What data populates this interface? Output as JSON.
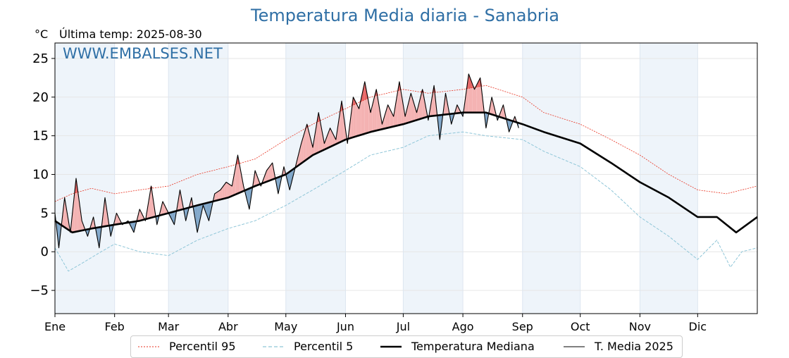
{
  "title": "Temperatura Media diaria - Sanabria",
  "unit": "°C",
  "last_temp_text": "Última temp: 2025-08-30",
  "watermark": "WWW.EMBALSES.NET",
  "colors": {
    "title": "#2f6fa5",
    "p95": "#e8311f",
    "p5": "#8fc6d8",
    "median": "#000000",
    "current": "#000000",
    "above_fill": "#f4b2b2",
    "above_extreme_fill": "#e86565",
    "below_fill": "#7fa6c9",
    "month_band": "#eef4fa"
  },
  "legend": [
    {
      "label": "Percentil 95",
      "style": "p95"
    },
    {
      "label": "Percentil 5",
      "style": "p5"
    },
    {
      "label": "Temperatura Mediana",
      "style": "median"
    },
    {
      "label": "T. Media 2025",
      "style": "current"
    }
  ],
  "chart_data": {
    "type": "line",
    "title": "Temperatura Media diaria - Sanabria",
    "ylabel": "°C",
    "ylim": [
      -8,
      27
    ],
    "yticks": [
      -5,
      0,
      5,
      10,
      15,
      20,
      25
    ],
    "ytick_labels": [
      "−5",
      "0",
      "5",
      "10",
      "15",
      "20",
      "25"
    ],
    "xlim_day": [
      1,
      366
    ],
    "months": [
      "Ene",
      "Feb",
      "Mar",
      "Abr",
      "May",
      "Jun",
      "Jul",
      "Ago",
      "Sep",
      "Oct",
      "Nov",
      "Dic"
    ],
    "month_start_days": [
      1,
      32,
      60,
      91,
      121,
      152,
      182,
      213,
      244,
      274,
      305,
      335
    ],
    "grid": true,
    "legend_position": "bottom",
    "series": [
      {
        "name": "Percentil 95",
        "key": "p95",
        "x": [
          1,
          10,
          20,
          32,
          45,
          60,
          75,
          91,
          105,
          121,
          135,
          152,
          165,
          182,
          195,
          213,
          225,
          244,
          255,
          274,
          290,
          305,
          320,
          335,
          350,
          366
        ],
        "y": [
          6.5,
          7.5,
          8.2,
          7.5,
          8.0,
          8.5,
          10.0,
          11.0,
          12.0,
          14.5,
          16.5,
          18.5,
          20.0,
          21.0,
          20.5,
          21.0,
          21.5,
          20.0,
          18.0,
          16.5,
          14.5,
          12.5,
          10.0,
          8.0,
          7.5,
          8.5
        ]
      },
      {
        "name": "Percentil 5",
        "key": "p5",
        "x": [
          1,
          8,
          15,
          25,
          32,
          45,
          60,
          75,
          91,
          105,
          121,
          135,
          152,
          165,
          182,
          195,
          213,
          225,
          244,
          255,
          274,
          290,
          305,
          320,
          335,
          345,
          352,
          358,
          366
        ],
        "y": [
          0.5,
          -2.5,
          -1.5,
          0.0,
          1.0,
          0.0,
          -0.5,
          1.5,
          3.0,
          4.0,
          6.0,
          8.0,
          10.5,
          12.5,
          13.5,
          15.0,
          15.5,
          15.0,
          14.5,
          13.0,
          11.0,
          8.0,
          4.5,
          2.0,
          -1.0,
          1.5,
          -2.0,
          0.0,
          0.5
        ]
      },
      {
        "name": "Temperatura Mediana",
        "key": "median",
        "x": [
          1,
          10,
          20,
          32,
          45,
          60,
          75,
          91,
          105,
          121,
          135,
          152,
          165,
          182,
          195,
          213,
          225,
          244,
          255,
          274,
          290,
          305,
          320,
          335,
          345,
          355,
          366
        ],
        "y": [
          4.0,
          2.5,
          3.0,
          3.5,
          4.0,
          5.0,
          6.0,
          7.0,
          8.5,
          10.0,
          12.5,
          14.5,
          15.5,
          16.5,
          17.5,
          18.0,
          18.0,
          16.5,
          15.5,
          14.0,
          11.5,
          9.0,
          7.0,
          4.5,
          4.5,
          2.5,
          4.5
        ]
      },
      {
        "name": "T. Media 2025",
        "key": "current",
        "x": [
          1,
          3,
          6,
          9,
          12,
          15,
          18,
          21,
          24,
          27,
          30,
          33,
          36,
          39,
          42,
          45,
          48,
          51,
          54,
          57,
          60,
          63,
          66,
          69,
          72,
          75,
          78,
          81,
          84,
          87,
          90,
          93,
          96,
          99,
          102,
          105,
          108,
          111,
          114,
          117,
          120,
          123,
          126,
          129,
          132,
          135,
          138,
          141,
          144,
          147,
          150,
          153,
          156,
          159,
          162,
          165,
          168,
          171,
          174,
          177,
          180,
          183,
          186,
          189,
          192,
          195,
          198,
          201,
          204,
          207,
          210,
          213,
          216,
          219,
          222,
          225,
          228,
          231,
          234,
          237,
          240,
          242
        ],
        "y": [
          5.0,
          0.5,
          7.0,
          2.5,
          9.5,
          4.0,
          2.0,
          4.5,
          0.5,
          7.0,
          2.0,
          5.0,
          3.5,
          4.0,
          2.5,
          5.5,
          4.0,
          8.5,
          3.5,
          6.5,
          5.0,
          3.5,
          8.0,
          4.0,
          7.0,
          2.5,
          6.0,
          4.0,
          7.5,
          8.0,
          9.0,
          8.5,
          12.5,
          8.5,
          5.5,
          10.5,
          8.5,
          10.5,
          11.5,
          7.5,
          11.0,
          8.0,
          11.0,
          14.0,
          16.5,
          13.5,
          18.0,
          14.0,
          16.0,
          14.5,
          19.5,
          14.0,
          20.0,
          18.5,
          22.0,
          18.0,
          21.0,
          16.5,
          19.0,
          17.5,
          22.0,
          17.5,
          20.5,
          18.0,
          21.0,
          17.0,
          21.5,
          14.5,
          20.5,
          16.5,
          19.0,
          17.5,
          23.0,
          21.0,
          22.5,
          16.0,
          20.0,
          17.0,
          19.0,
          15.5,
          17.5,
          16.0
        ]
      }
    ]
  }
}
